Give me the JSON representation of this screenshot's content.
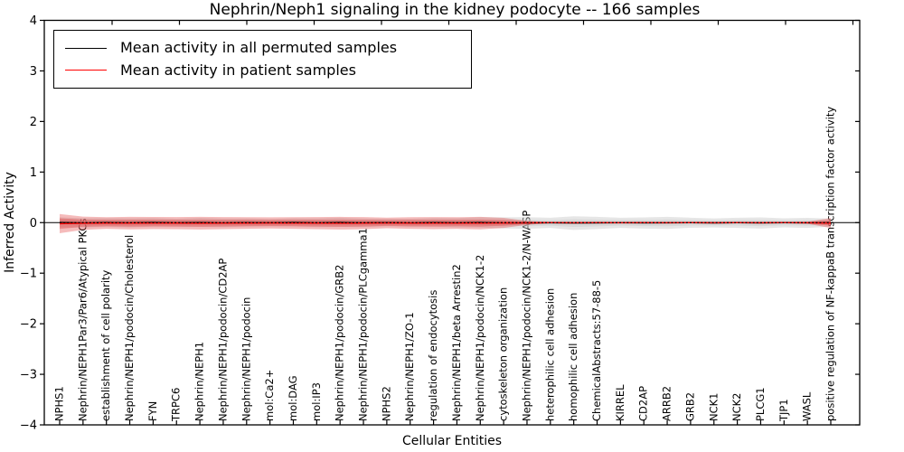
{
  "chart_data": {
    "type": "line",
    "title": "Nephrin/Neph1 signaling in the kidney podocyte -- 166 samples",
    "xlabel": "Cellular Entities",
    "ylabel": "Inferred Activity",
    "ylim": [
      -4,
      4
    ],
    "yticks": [
      4,
      3,
      2,
      1,
      0,
      -1,
      -2,
      -3,
      -4
    ],
    "grid": false,
    "legend_position": "upper left",
    "sample_count_in_title": 166,
    "categories": [
      "NPHS1",
      "Nephrin/NEPH1Par3/Par6/Atypical PKCs",
      "establishment of cell polarity",
      "Nephrin/NEPH1/podocin/Cholesterol",
      "FYN",
      "TRPC6",
      "Nephrin/NEPH1",
      "Nephrin/NEPH1/podocin/CD2AP",
      "Nephrin/NEPH1/podocin",
      "mol:Ca2+",
      "mol:DAG",
      "mol:IP3",
      "Nephrin/NEPH1/podocin/GRB2",
      "Nephrin/NEPH1/podocin/PLCgamma1",
      "NPHS2",
      "Nephrin/NEPH1/ZO-1",
      "regulation of endocytosis",
      "Nephrin/NEPH1/beta Arrestin2",
      "Nephrin/NEPH1/podocin/NCK1-2",
      "cytoskeleton organization",
      "Nephrin/NEPH1/podocin/NCK1-2/N-WASP",
      "heterophilic cell adhesion",
      "homophilic cell adhesion",
      "ChemicalAbstracts:57-88-5",
      "KIRREL",
      "CD2AP",
      "ARRB2",
      "GRB2",
      "NCK1",
      "NCK2",
      "PLCG1",
      "TJP1",
      "WASL",
      "positive regulation of NF-kappaB transcription factor activity"
    ],
    "series": [
      {
        "name": "Mean activity in all permuted samples",
        "color": "#000000",
        "line_style": "solid",
        "line_width": 1.1,
        "band_color": "#c8c8c8",
        "band_opacity": 0.45,
        "values": [
          0.005,
          -0.005,
          0.003,
          -0.004,
          0.005,
          -0.003,
          0.004,
          -0.005,
          0.002,
          -0.004,
          0.005,
          -0.003,
          0.005,
          -0.004,
          0.002,
          -0.005,
          0.004,
          -0.003,
          0.005,
          -0.006,
          -0.008,
          -0.005,
          -0.01,
          -0.007,
          -0.004,
          -0.008,
          -0.005,
          -0.003,
          -0.007,
          -0.004,
          -0.008,
          -0.004,
          -0.006,
          0
        ],
        "band_half_widths": [
          0.1,
          0.09,
          0.085,
          0.09,
          0.085,
          0.08,
          0.09,
          0.085,
          0.08,
          0.075,
          0.08,
          0.085,
          0.09,
          0.085,
          0.075,
          0.08,
          0.085,
          0.09,
          0.1,
          0.11,
          0.115,
          0.1,
          0.135,
          0.12,
          0.1,
          0.11,
          0.12,
          0.1,
          0.09,
          0.1,
          0.11,
          0.09,
          0.1,
          0.08
        ]
      },
      {
        "name": "Mean activity in patient samples",
        "color": "#ff0000",
        "line_style": "solid",
        "line_width": 1.5,
        "band_color": "#e03232",
        "band_opacity": 0.33,
        "values": [
          -0.02,
          -0.012,
          -0.008,
          -0.01,
          -0.008,
          -0.01,
          -0.012,
          -0.01,
          -0.008,
          -0.006,
          -0.008,
          -0.01,
          -0.012,
          -0.01,
          -0.006,
          -0.008,
          -0.01,
          -0.008,
          -0.01,
          -0.006,
          -0.004,
          0,
          -0.002,
          0,
          -0.002,
          0,
          -0.002,
          0,
          -0.002,
          0,
          -0.002,
          0,
          -0.002,
          -0.008
        ],
        "band_half_widths": [
          0.19,
          0.13,
          0.115,
          0.125,
          0.12,
          0.12,
          0.125,
          0.12,
          0.115,
          0.11,
          0.115,
          0.12,
          0.125,
          0.12,
          0.105,
          0.115,
          0.12,
          0.115,
          0.125,
          0.1,
          0.04,
          0.012,
          0.012,
          0.012,
          0.012,
          0.012,
          0.012,
          0.012,
          0.012,
          0.012,
          0.012,
          0.012,
          0.02,
          0.1
        ]
      }
    ],
    "zero_line": {
      "y": 0,
      "style": "dotted",
      "color": "#000000"
    }
  }
}
